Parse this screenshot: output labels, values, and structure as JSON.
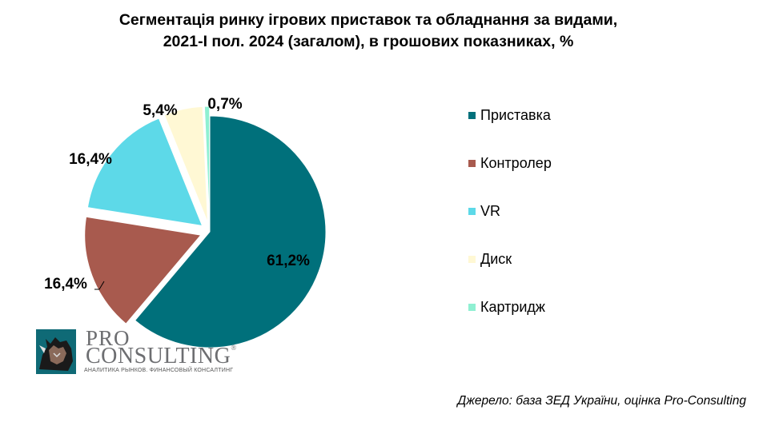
{
  "title_line1": "Сегментація ринку ігрових приставок та обладнання за видами,",
  "title_line2": "2021-І пол. 2024 (загалом), в грошових показниках, %",
  "chart_data": {
    "type": "pie",
    "title": "Сегментація ринку ігрових приставок та обладнання за видами, 2021-І пол. 2024 (загалом), в грошових показниках, %",
    "legend_position": "right",
    "slices": [
      {
        "name": "Приставка",
        "value": 61.2,
        "label": "61,2%",
        "color": "#00707b"
      },
      {
        "name": "Контролер",
        "value": 16.4,
        "label": "16,4%",
        "color": "#a85a4e"
      },
      {
        "name": "VR",
        "value": 16.4,
        "label": "16,4%",
        "color": "#5dd9e8"
      },
      {
        "name": "Диск",
        "value": 5.4,
        "label": "5,4%",
        "color": "#fff8d4"
      },
      {
        "name": "Картридж",
        "value": 0.7,
        "label": "0,7%",
        "color": "#8ff0d2"
      }
    ]
  },
  "logo": {
    "pro": "PRO",
    "consulting": "CONSULTING",
    "registered": "®",
    "tagline": "АНАЛИТИКА РЫНКОВ. ФИНАНСОВЫЙ КОНСАЛТИНГ"
  },
  "source": "Джерело: база ЗЕД України, оцінка Pro-Consulting"
}
